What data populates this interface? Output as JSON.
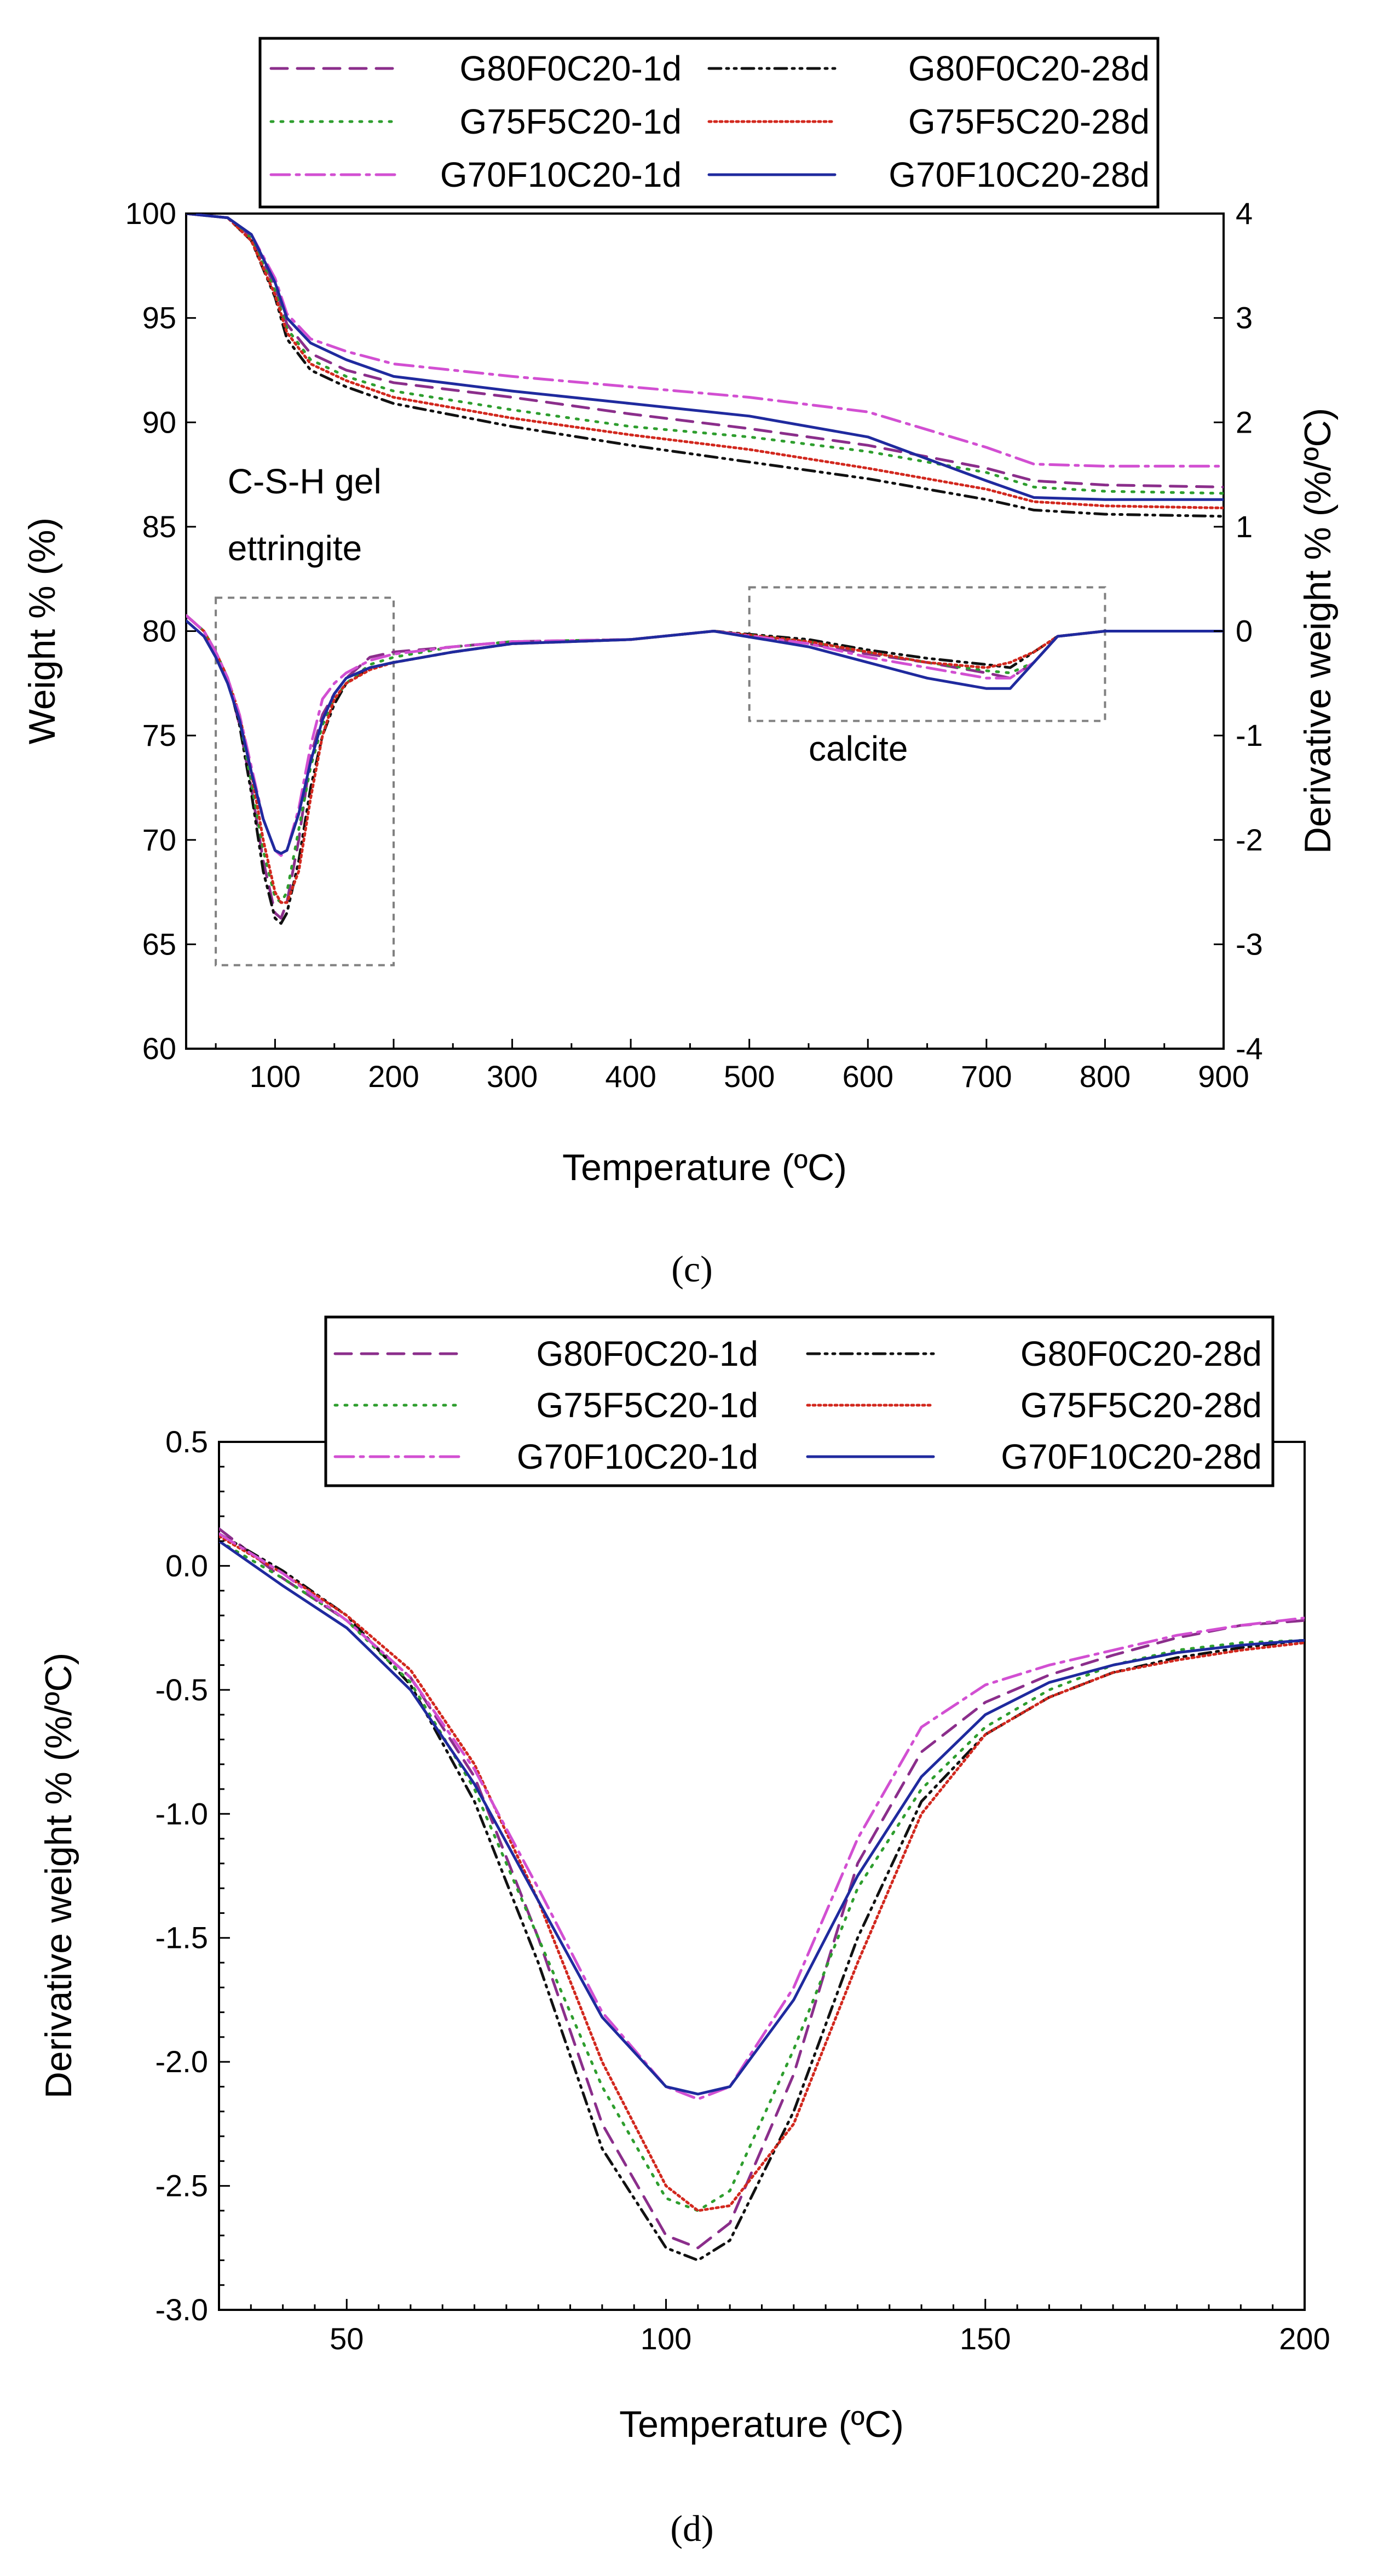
{
  "styles": {
    "G80F0C20-1d": {
      "color": "#8B2E8B",
      "dash": "30 18"
    },
    "G80F0C20-28d": {
      "color": "#111111",
      "dash": "22 10 4 10 4 10"
    },
    "G75F5C20-1d": {
      "color": "#2E9E2E",
      "dash": "4 14"
    },
    "G75F5C20-28d": {
      "color": "#D2281E",
      "dash": "4 6"
    },
    "G70F10C20-1d": {
      "color": "#D24FD2",
      "dash": "34 12 6 12"
    },
    "G70F10C20-28d": {
      "color": "#1F2A9E",
      "dash": ""
    }
  },
  "chart_data": [
    {
      "type": "line",
      "panel_label": "(c)",
      "legend": [
        "G80F0C20-1d",
        "G80F0C20-28d",
        "G75F5C20-1d",
        "G75F5C20-28d",
        "G70F10C20-1d",
        "G70F10C20-28d"
      ],
      "xlabel": "Temperature (ºC)",
      "ylabel": "Weight % (%)",
      "y2label": "Derivative weight % (%/ºC)",
      "xlim": [
        25,
        900
      ],
      "ylim": [
        60,
        100
      ],
      "y2lim": [
        -4,
        4
      ],
      "xticks": [
        100,
        200,
        300,
        400,
        500,
        600,
        700,
        800,
        900
      ],
      "yticks": [
        60,
        65,
        70,
        75,
        80,
        85,
        90,
        95,
        100
      ],
      "y2ticks": [
        -4,
        -3,
        -2,
        -1,
        0,
        1,
        2,
        3,
        4
      ],
      "annotations": [
        {
          "text": "C-S-H gel",
          "x": 60,
          "y": 86.6
        },
        {
          "text": "ettringite",
          "x": 60,
          "y": 83.4
        },
        {
          "text": "calcite",
          "x": 550,
          "y": 73.8
        }
      ],
      "boxes": [
        {
          "x": [
            50,
            200
          ],
          "y": [
            64,
            81.6
          ]
        },
        {
          "x": [
            500,
            800
          ],
          "y": [
            75.7,
            82.1
          ]
        }
      ],
      "weight_series": [
        {
          "name": "G80F0C20-1d",
          "x": [
            25,
            60,
            80,
            100,
            110,
            130,
            160,
            200,
            300,
            400,
            500,
            600,
            700,
            740,
            800,
            900
          ],
          "y": [
            100,
            99.8,
            98.9,
            96.5,
            94.7,
            93.3,
            92.5,
            91.9,
            91.2,
            90.4,
            89.7,
            88.9,
            87.8,
            87.2,
            87.0,
            86.9
          ]
        },
        {
          "name": "G80F0C20-28d",
          "x": [
            25,
            60,
            80,
            100,
            110,
            130,
            160,
            200,
            300,
            400,
            500,
            600,
            700,
            740,
            800,
            900
          ],
          "y": [
            100,
            99.8,
            98.7,
            96.0,
            94.0,
            92.5,
            91.7,
            90.9,
            89.8,
            88.9,
            88.1,
            87.3,
            86.3,
            85.8,
            85.6,
            85.5
          ]
        },
        {
          "name": "G75F5C20-1d",
          "x": [
            25,
            60,
            80,
            100,
            110,
            130,
            160,
            200,
            300,
            400,
            500,
            600,
            700,
            740,
            800,
            900
          ],
          "y": [
            100,
            99.8,
            98.8,
            96.3,
            94.5,
            93.0,
            92.2,
            91.5,
            90.6,
            89.8,
            89.3,
            88.6,
            87.6,
            86.9,
            86.7,
            86.6
          ]
        },
        {
          "name": "G75F5C20-28d",
          "x": [
            25,
            60,
            80,
            100,
            110,
            130,
            160,
            200,
            300,
            400,
            500,
            600,
            700,
            740,
            800,
            900
          ],
          "y": [
            100,
            99.8,
            98.7,
            96.1,
            94.3,
            92.8,
            92.0,
            91.2,
            90.2,
            89.4,
            88.7,
            87.8,
            86.8,
            86.2,
            86.0,
            85.9
          ]
        },
        {
          "name": "G70F10C20-1d",
          "x": [
            25,
            60,
            80,
            100,
            110,
            130,
            160,
            200,
            300,
            400,
            500,
            600,
            700,
            740,
            800,
            900
          ],
          "y": [
            100,
            99.8,
            99.0,
            96.9,
            95.2,
            94.0,
            93.4,
            92.8,
            92.2,
            91.7,
            91.2,
            90.5,
            88.8,
            88.0,
            87.9,
            87.9
          ]
        },
        {
          "name": "G70F10C20-28d",
          "x": [
            25,
            60,
            80,
            100,
            110,
            130,
            160,
            200,
            300,
            400,
            500,
            600,
            700,
            740,
            800,
            900
          ],
          "y": [
            100,
            99.8,
            99.0,
            96.7,
            95.0,
            93.8,
            93.0,
            92.2,
            91.5,
            90.9,
            90.3,
            89.3,
            87.2,
            86.4,
            86.3,
            86.3
          ]
        }
      ],
      "derivative_series": [
        {
          "name": "G80F0C20-1d",
          "x": [
            25,
            40,
            50,
            60,
            70,
            80,
            90,
            100,
            105,
            110,
            120,
            130,
            140,
            150,
            160,
            180,
            200,
            250,
            300,
            400,
            470,
            550,
            600,
            650,
            700,
            720,
            740,
            760,
            800,
            900
          ],
          "y": [
            0.15,
            0.0,
            -0.2,
            -0.45,
            -0.9,
            -1.5,
            -2.2,
            -2.7,
            -2.75,
            -2.6,
            -2.0,
            -1.2,
            -0.8,
            -0.6,
            -0.45,
            -0.25,
            -0.2,
            -0.15,
            -0.1,
            -0.08,
            0.0,
            -0.12,
            -0.22,
            -0.3,
            -0.4,
            -0.45,
            -0.3,
            -0.05,
            0.0,
            0.0
          ]
        },
        {
          "name": "G80F0C20-28d",
          "x": [
            25,
            40,
            50,
            60,
            70,
            80,
            90,
            100,
            105,
            110,
            120,
            130,
            140,
            150,
            160,
            180,
            200,
            250,
            300,
            400,
            470,
            550,
            600,
            650,
            700,
            720,
            740,
            760,
            800,
            900
          ],
          "y": [
            0.15,
            0.0,
            -0.2,
            -0.45,
            -0.9,
            -1.55,
            -2.3,
            -2.75,
            -2.8,
            -2.7,
            -2.2,
            -1.5,
            -1.0,
            -0.7,
            -0.5,
            -0.35,
            -0.3,
            -0.2,
            -0.12,
            -0.08,
            0.0,
            -0.08,
            -0.18,
            -0.26,
            -0.32,
            -0.35,
            -0.2,
            -0.05,
            0.0,
            0.0
          ]
        },
        {
          "name": "G75F5C20-1d",
          "x": [
            25,
            40,
            50,
            60,
            70,
            80,
            90,
            100,
            105,
            110,
            120,
            130,
            140,
            150,
            160,
            180,
            200,
            250,
            300,
            400,
            470,
            550,
            600,
            650,
            700,
            720,
            740,
            760,
            800,
            900
          ],
          "y": [
            0.15,
            0.0,
            -0.2,
            -0.45,
            -0.85,
            -1.45,
            -2.1,
            -2.55,
            -2.6,
            -2.5,
            -1.9,
            -1.3,
            -0.9,
            -0.65,
            -0.5,
            -0.32,
            -0.25,
            -0.15,
            -0.1,
            -0.08,
            0.0,
            -0.1,
            -0.2,
            -0.3,
            -0.38,
            -0.4,
            -0.3,
            -0.05,
            0.0,
            0.0
          ]
        },
        {
          "name": "G75F5C20-28d",
          "x": [
            25,
            40,
            50,
            60,
            70,
            80,
            90,
            100,
            105,
            110,
            120,
            130,
            140,
            150,
            160,
            180,
            200,
            250,
            300,
            400,
            470,
            550,
            600,
            650,
            700,
            720,
            740,
            760,
            800,
            900
          ],
          "y": [
            0.15,
            0.0,
            -0.2,
            -0.45,
            -0.8,
            -1.35,
            -2.0,
            -2.5,
            -2.6,
            -2.6,
            -2.3,
            -1.6,
            -1.0,
            -0.65,
            -0.5,
            -0.37,
            -0.3,
            -0.2,
            -0.12,
            -0.08,
            0.0,
            -0.1,
            -0.2,
            -0.3,
            -0.35,
            -0.3,
            -0.2,
            -0.05,
            0.0,
            0.0
          ]
        },
        {
          "name": "G70F10C20-1d",
          "x": [
            25,
            40,
            50,
            60,
            70,
            80,
            90,
            100,
            105,
            110,
            120,
            130,
            140,
            150,
            160,
            180,
            200,
            250,
            300,
            400,
            470,
            550,
            600,
            650,
            700,
            720,
            740,
            760,
            800,
            900
          ],
          "y": [
            0.15,
            0.0,
            -0.2,
            -0.45,
            -0.8,
            -1.3,
            -1.8,
            -2.1,
            -2.15,
            -2.1,
            -1.7,
            -1.1,
            -0.65,
            -0.5,
            -0.4,
            -0.28,
            -0.22,
            -0.15,
            -0.1,
            -0.08,
            0.0,
            -0.12,
            -0.25,
            -0.35,
            -0.45,
            -0.45,
            -0.3,
            -0.05,
            0.0,
            0.0
          ]
        },
        {
          "name": "G70F10C20-28d",
          "x": [
            25,
            40,
            50,
            60,
            70,
            80,
            90,
            100,
            105,
            110,
            120,
            130,
            140,
            150,
            160,
            180,
            200,
            250,
            300,
            400,
            470,
            550,
            600,
            650,
            700,
            720,
            740,
            760,
            800,
            900
          ],
          "y": [
            0.1,
            -0.05,
            -0.25,
            -0.5,
            -0.85,
            -1.35,
            -1.8,
            -2.1,
            -2.13,
            -2.1,
            -1.75,
            -1.25,
            -0.85,
            -0.6,
            -0.45,
            -0.35,
            -0.3,
            -0.2,
            -0.12,
            -0.08,
            0.0,
            -0.15,
            -0.3,
            -0.45,
            -0.55,
            -0.55,
            -0.3,
            -0.05,
            0.0,
            0.0
          ]
        }
      ]
    },
    {
      "type": "line",
      "panel_label": "(d)",
      "legend": [
        "G80F0C20-1d",
        "G80F0C20-28d",
        "G75F5C20-1d",
        "G75F5C20-28d",
        "G70F10C20-1d",
        "G70F10C20-28d"
      ],
      "xlabel": "Temperature (ºC)",
      "ylabel": "Derivative weight % (%/ºC)",
      "xlim": [
        30,
        200
      ],
      "ylim": [
        -3.0,
        0.5
      ],
      "xticks": [
        50,
        100,
        150,
        200
      ],
      "yticks": [
        -3.0,
        -2.5,
        -2.0,
        -1.5,
        -1.0,
        -0.5,
        0.0,
        0.5
      ],
      "series": [
        {
          "name": "G80F0C20-1d",
          "x": [
            30,
            40,
            50,
            60,
            70,
            80,
            90,
            100,
            105,
            110,
            120,
            130,
            140,
            150,
            160,
            170,
            180,
            190,
            200
          ],
          "y": [
            0.15,
            -0.05,
            -0.22,
            -0.45,
            -0.85,
            -1.5,
            -2.25,
            -2.7,
            -2.75,
            -2.65,
            -2.05,
            -1.2,
            -0.75,
            -0.55,
            -0.44,
            -0.36,
            -0.29,
            -0.24,
            -0.22
          ]
        },
        {
          "name": "G80F0C20-28d",
          "x": [
            30,
            40,
            50,
            60,
            70,
            80,
            90,
            100,
            105,
            110,
            120,
            130,
            140,
            150,
            160,
            170,
            180,
            190,
            200
          ],
          "y": [
            0.13,
            -0.02,
            -0.2,
            -0.48,
            -0.95,
            -1.6,
            -2.35,
            -2.75,
            -2.8,
            -2.72,
            -2.2,
            -1.5,
            -0.95,
            -0.68,
            -0.53,
            -0.43,
            -0.37,
            -0.33,
            -0.3
          ]
        },
        {
          "name": "G75F5C20-1d",
          "x": [
            30,
            40,
            50,
            60,
            70,
            80,
            90,
            100,
            105,
            110,
            120,
            130,
            140,
            150,
            160,
            170,
            180,
            190,
            200
          ],
          "y": [
            0.1,
            -0.05,
            -0.22,
            -0.47,
            -0.9,
            -1.5,
            -2.1,
            -2.55,
            -2.6,
            -2.52,
            -1.95,
            -1.3,
            -0.9,
            -0.65,
            -0.5,
            -0.4,
            -0.34,
            -0.31,
            -0.3
          ]
        },
        {
          "name": "G75F5C20-28d",
          "x": [
            30,
            40,
            50,
            60,
            70,
            80,
            90,
            100,
            105,
            110,
            120,
            130,
            140,
            150,
            160,
            170,
            180,
            190,
            200
          ],
          "y": [
            0.12,
            -0.03,
            -0.2,
            -0.42,
            -0.8,
            -1.35,
            -2.0,
            -2.5,
            -2.6,
            -2.58,
            -2.25,
            -1.6,
            -1.0,
            -0.68,
            -0.53,
            -0.43,
            -0.38,
            -0.34,
            -0.31
          ]
        },
        {
          "name": "G70F10C20-1d",
          "x": [
            30,
            40,
            50,
            60,
            70,
            80,
            90,
            100,
            105,
            110,
            120,
            130,
            140,
            150,
            160,
            170,
            180,
            190,
            200
          ],
          "y": [
            0.13,
            -0.03,
            -0.22,
            -0.45,
            -0.82,
            -1.3,
            -1.8,
            -2.1,
            -2.15,
            -2.1,
            -1.7,
            -1.1,
            -0.65,
            -0.48,
            -0.4,
            -0.34,
            -0.28,
            -0.24,
            -0.21
          ]
        },
        {
          "name": "G70F10C20-28d",
          "x": [
            30,
            40,
            50,
            60,
            70,
            80,
            90,
            100,
            105,
            110,
            120,
            130,
            140,
            150,
            160,
            170,
            180,
            190,
            200
          ],
          "y": [
            0.1,
            -0.08,
            -0.25,
            -0.5,
            -0.88,
            -1.35,
            -1.82,
            -2.1,
            -2.13,
            -2.1,
            -1.75,
            -1.25,
            -0.85,
            -0.6,
            -0.47,
            -0.4,
            -0.35,
            -0.32,
            -0.3
          ]
        }
      ]
    }
  ]
}
